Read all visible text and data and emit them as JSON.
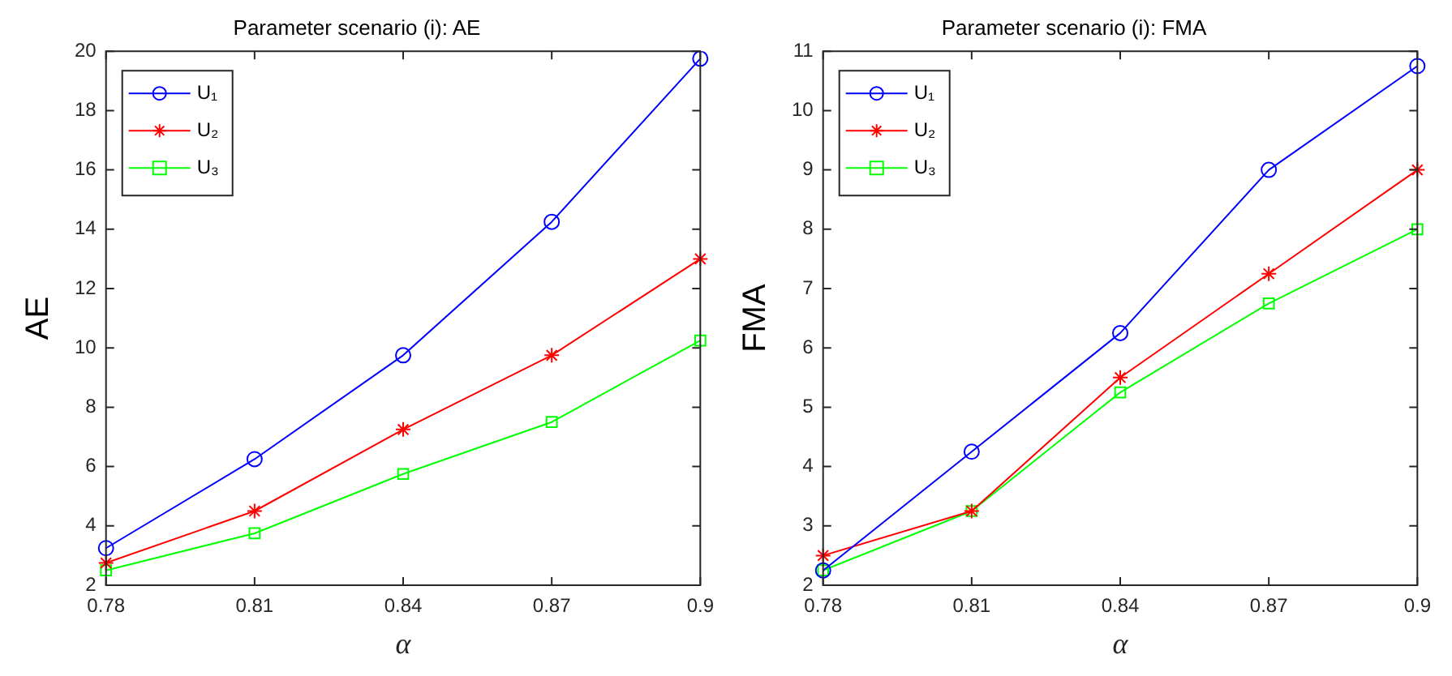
{
  "chart_data": [
    {
      "type": "line",
      "title": "Parameter scenario (i): AE",
      "xlabel": "α",
      "ylabel": "AE",
      "categories": [
        "0.78",
        "0.81",
        "0.84",
        "0.87",
        "0.9"
      ],
      "ylim": [
        2,
        20
      ],
      "yticks": [
        2,
        4,
        6,
        8,
        10,
        12,
        14,
        16,
        18,
        20
      ],
      "legend": "top left",
      "line_style": "solid",
      "series": [
        {
          "name": "U₁",
          "color": "#0000ff",
          "marker": "circle",
          "values": [
            3.25,
            6.25,
            9.75,
            14.25,
            19.75
          ]
        },
        {
          "name": "U₂",
          "color": "#ff0000",
          "marker": "cross",
          "values": [
            2.75,
            4.5,
            7.25,
            9.75,
            13
          ]
        },
        {
          "name": "U₃",
          "color": "#00ff00",
          "marker": "square",
          "values": [
            2.5,
            3.75,
            5.75,
            7.5,
            10.25
          ]
        }
      ]
    },
    {
      "type": "line",
      "title": "Parameter scenario (i): FMA",
      "xlabel": "α",
      "ylabel": "FMA",
      "categories": [
        "0.78",
        "0.81",
        "0.84",
        "0.87",
        "0.9"
      ],
      "ylim": [
        2,
        11
      ],
      "yticks": [
        2,
        3,
        4,
        5,
        6,
        7,
        8,
        9,
        10,
        11
      ],
      "legend": "top left",
      "line_style": "solid",
      "series": [
        {
          "name": "U₁",
          "color": "#0000ff",
          "marker": "circle",
          "values": [
            2.25,
            4.25,
            6.25,
            9,
            10.75
          ]
        },
        {
          "name": "U₂",
          "color": "#ff0000",
          "marker": "cross",
          "values": [
            2.5,
            3.25,
            5.5,
            7.25,
            9
          ]
        },
        {
          "name": "U₃",
          "color": "#00ff00",
          "marker": "square",
          "values": [
            2.25,
            3.25,
            5.25,
            6.75,
            8
          ]
        }
      ]
    }
  ]
}
